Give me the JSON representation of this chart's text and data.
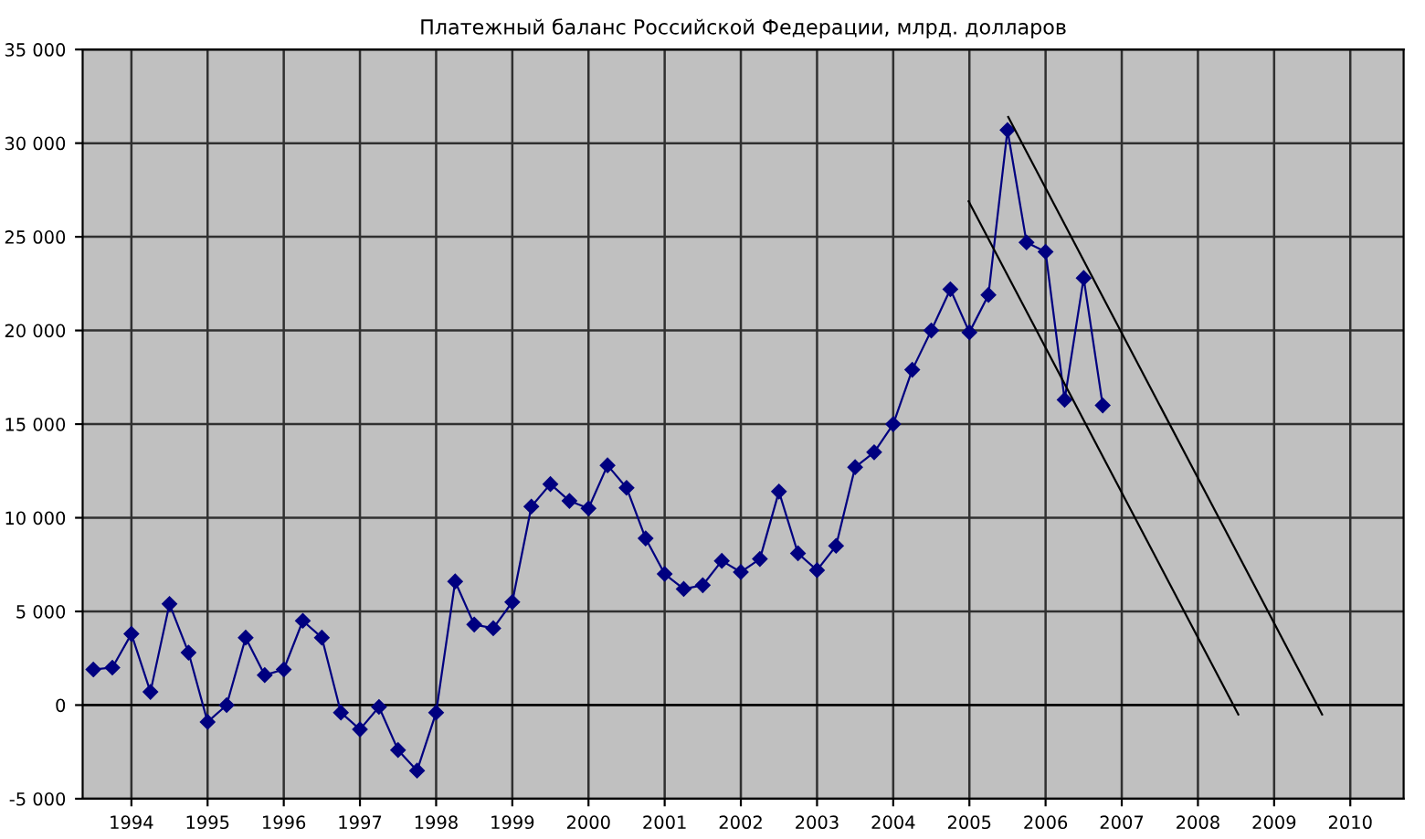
{
  "chart_data": {
    "type": "line",
    "title": "Платежный баланс Российской Федерации, млрд. долларов",
    "series": [
      {
        "color": "#000080",
        "marker": "diamond",
        "x": [
          1994.0,
          1994.25,
          1994.5,
          1994.75,
          1995.0,
          1995.25,
          1995.5,
          1995.75,
          1996.0,
          1996.25,
          1996.5,
          1996.75,
          1997.0,
          1997.25,
          1997.5,
          1997.75,
          1998.0,
          1998.25,
          1998.5,
          1998.75,
          1999.0,
          1999.25,
          1999.5,
          1999.75,
          2000.0,
          2000.25,
          2000.5,
          2000.75,
          2001.0,
          2001.25,
          2001.5,
          2001.75,
          2002.0,
          2002.25,
          2002.5,
          2002.75,
          2003.0,
          2003.25,
          2003.5,
          2003.75,
          2004.0,
          2004.25,
          2004.5,
          2004.75,
          2005.0,
          2005.25,
          2005.5,
          2005.75,
          2006.0,
          2006.25,
          2006.5,
          2006.75,
          2007.0,
          2007.25
        ],
        "values": [
          1900,
          2000,
          3800,
          700,
          5400,
          2800,
          -900,
          0,
          3600,
          1600,
          1900,
          4500,
          3600,
          -400,
          -1300,
          -100,
          -2400,
          -3500,
          -400,
          6600,
          4300,
          4100,
          5500,
          10600,
          11800,
          10900,
          10500,
          12800,
          11600,
          8900,
          7000,
          6200,
          6400,
          7700,
          7100,
          7800,
          11400,
          8100,
          7200,
          8500,
          12700,
          13500,
          15000,
          17900,
          20000,
          22200,
          19900,
          21900,
          30700,
          24700,
          24200,
          16300,
          22800,
          16000
        ]
      },
      {
        "color": "#000000",
        "marker": "none",
        "x": [
          2006.01,
          2010.13
        ],
        "values": [
          31400,
          -500
        ]
      },
      {
        "color": "#000000",
        "marker": "none",
        "x": [
          2005.49,
          2009.03
        ],
        "values": [
          26900,
          -500
        ]
      }
    ],
    "xlim": [
      1993.86,
      2011.2
    ],
    "xticks": [
      {
        "value": 1994.5,
        "label": "1994"
      },
      {
        "value": 1995.5,
        "label": "1995"
      },
      {
        "value": 1996.5,
        "label": "1996"
      },
      {
        "value": 1997.5,
        "label": "1997"
      },
      {
        "value": 1998.5,
        "label": "1998"
      },
      {
        "value": 1999.5,
        "label": "1999"
      },
      {
        "value": 2000.5,
        "label": "2000"
      },
      {
        "value": 2001.5,
        "label": "2001"
      },
      {
        "value": 2002.5,
        "label": "2002"
      },
      {
        "value": 2003.5,
        "label": "2003"
      },
      {
        "value": 2004.5,
        "label": "2004"
      },
      {
        "value": 2005.5,
        "label": "2005"
      },
      {
        "value": 2006.5,
        "label": "2006"
      },
      {
        "value": 2007.5,
        "label": "2007"
      },
      {
        "value": 2008.5,
        "label": "2008"
      },
      {
        "value": 2009.5,
        "label": "2009"
      },
      {
        "value": 2010.5,
        "label": "2010"
      }
    ],
    "ylim": [
      -5000,
      35000
    ],
    "yticks": [
      {
        "value": -5000,
        "label": "-5 000"
      },
      0,
      {
        "value": 5000,
        "label": "5 000"
      },
      {
        "value": 10000,
        "label": "10 000"
      },
      {
        "value": 15000,
        "label": "15 000"
      },
      {
        "value": 20000,
        "label": "20 000"
      },
      {
        "value": 25000,
        "label": "25 000"
      },
      {
        "value": 30000,
        "label": "30 000"
      },
      {
        "value": 35000,
        "label": "35 000"
      }
    ],
    "grid": true,
    "line_style": "solid"
  }
}
